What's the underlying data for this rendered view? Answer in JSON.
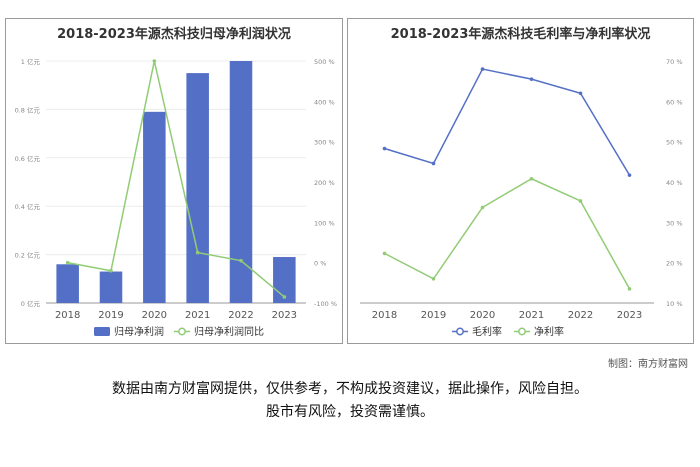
{
  "colors": {
    "bar": "#5470c6",
    "line_blue": "#5470c6",
    "line_green": "#91cc75",
    "grid": "#ececec",
    "axis": "#999999"
  },
  "chart_data": [
    {
      "type": "bar",
      "title": "2018-2023年源杰科技归母净利润状况",
      "categories": [
        "2018",
        "2019",
        "2020",
        "2021",
        "2022",
        "2023"
      ],
      "left_axis": {
        "ticks": [
          "0 亿元",
          "0.2 亿元",
          "0.4 亿元",
          "0.6 亿元",
          "0.8 亿元",
          "1 亿元"
        ],
        "ylim": [
          0,
          1
        ]
      },
      "right_axis": {
        "ticks": [
          "-100 %",
          "0 %",
          "100 %",
          "200 %",
          "300 %",
          "400 %",
          "500 %"
        ],
        "ylim": [
          -100,
          500
        ]
      },
      "series": [
        {
          "name": "归母净利润",
          "kind": "bar",
          "axis": "left",
          "values": [
            0.16,
            0.13,
            0.79,
            0.95,
            1.0,
            0.19
          ]
        },
        {
          "name": "归母净利润同比",
          "kind": "line",
          "axis": "right",
          "values": [
            0,
            -20,
            500,
            25,
            5,
            -85
          ]
        }
      ],
      "legend_position": "bottom"
    },
    {
      "type": "line",
      "title": "2018-2023年源杰科技毛利率与净利率状况",
      "categories": [
        "2018",
        "2019",
        "2020",
        "2021",
        "2022",
        "2023"
      ],
      "right_axis": {
        "ticks": [
          "10 %",
          "20 %",
          "30 %",
          "40 %",
          "50 %",
          "60 %",
          "70 %"
        ],
        "ylim": [
          10,
          70
        ]
      },
      "series": [
        {
          "name": "毛利率",
          "values": [
            48.3,
            44.6,
            68.0,
            65.5,
            62.0,
            41.7
          ]
        },
        {
          "name": "净利率",
          "values": [
            22.3,
            16.0,
            33.7,
            40.8,
            35.3,
            13.5
          ]
        }
      ],
      "legend_position": "bottom"
    }
  ],
  "credit": "制图：南方财富网",
  "disclaimer": {
    "line1": "数据由南方财富网提供，仅供参考，不构成投资建议，据此操作，风险自担。",
    "line2": "股市有风险，投资需谨慎。"
  }
}
